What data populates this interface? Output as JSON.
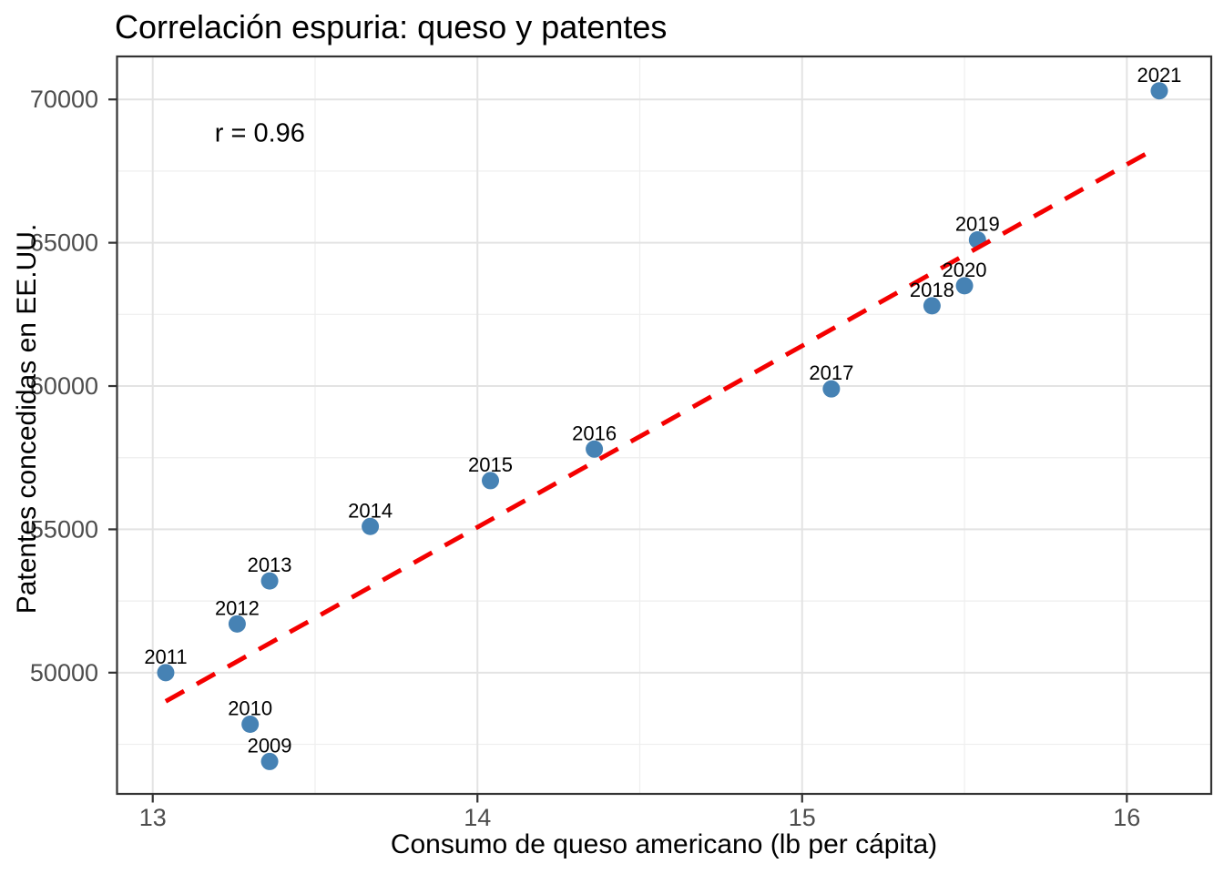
{
  "chart_data": {
    "type": "scatter",
    "title": "Correlación espuria: queso y patentes",
    "xlabel": "Consumo de queso americano (lb per cápita)",
    "ylabel": "Patentes concedidas en EE.UU.",
    "annotation": {
      "text": "r = 0.96",
      "x": 13.33,
      "y": 68800
    },
    "xlim": [
      12.89,
      16.26
    ],
    "ylim": [
      45770,
      71500
    ],
    "x_ticks": [
      13,
      14,
      15,
      16
    ],
    "y_ticks": [
      50000,
      55000,
      60000,
      65000,
      70000
    ],
    "x_minor": [
      13.5,
      14.5,
      15.5
    ],
    "y_minor": [
      47500,
      52500,
      57500,
      62500,
      67500
    ],
    "grid": true,
    "legend": "none",
    "point_color": "#4682B4",
    "trend_color": "#F40000",
    "colors": {
      "grid_major": "#E3E3E3",
      "grid_minor": "#EEEEEE",
      "panel_border": "#333333",
      "tick_mark": "#333333",
      "tick_label": "#4D4D4D",
      "text": "#000000",
      "background": "#FFFFFF"
    },
    "points": [
      {
        "year": "2009",
        "x": 13.36,
        "y": 46900
      },
      {
        "year": "2010",
        "x": 13.3,
        "y": 48200
      },
      {
        "year": "2011",
        "x": 13.04,
        "y": 50000
      },
      {
        "year": "2012",
        "x": 13.26,
        "y": 51700
      },
      {
        "year": "2013",
        "x": 13.36,
        "y": 53200
      },
      {
        "year": "2014",
        "x": 13.67,
        "y": 55100
      },
      {
        "year": "2015",
        "x": 14.04,
        "y": 56700
      },
      {
        "year": "2016",
        "x": 14.36,
        "y": 57800
      },
      {
        "year": "2017",
        "x": 15.09,
        "y": 59900
      },
      {
        "year": "2018",
        "x": 15.4,
        "y": 62800
      },
      {
        "year": "2019",
        "x": 15.54,
        "y": 65100
      },
      {
        "year": "2020",
        "x": 15.5,
        "y": 63500
      },
      {
        "year": "2021",
        "x": 16.1,
        "y": 70300
      }
    ],
    "trend": {
      "style": "dashed",
      "x1": 13.04,
      "y1": 49000,
      "x2": 16.09,
      "y2": 68300
    }
  }
}
